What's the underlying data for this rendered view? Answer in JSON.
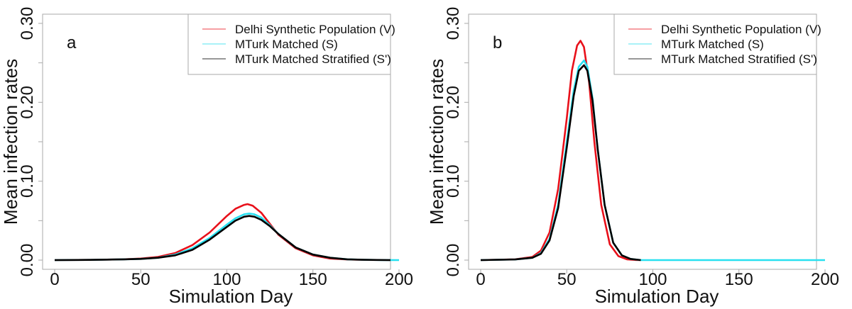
{
  "chart_data": [
    {
      "type": "line",
      "panel_label": "a",
      "title": "",
      "xlabel": "Simulation Day",
      "ylabel": "Mean infection rates",
      "xlim": [
        0,
        200
      ],
      "ylim": [
        0,
        0.3
      ],
      "x_ticks": [
        0,
        50,
        100,
        150,
        200
      ],
      "x_tick_labels": [
        "0",
        "50",
        "100",
        "150",
        "200"
      ],
      "y_ticks": [
        0,
        0.05,
        0.1,
        0.15,
        0.2,
        0.25,
        0.3
      ],
      "y_tick_labels": [
        "0.00",
        "",
        "0.10",
        "",
        "0.20",
        "",
        "0.30"
      ],
      "grid": false,
      "legend_position": "top-right",
      "series": [
        {
          "name": "Delhi Synthetic Population (V)",
          "color": "#e8101a",
          "x": [
            0,
            20,
            40,
            50,
            60,
            70,
            80,
            90,
            100,
            105,
            110,
            112,
            115,
            120,
            125,
            130,
            140,
            150,
            160,
            170,
            180,
            195
          ],
          "y": [
            0,
            0.0003,
            0.001,
            0.002,
            0.004,
            0.009,
            0.019,
            0.035,
            0.056,
            0.065,
            0.07,
            0.071,
            0.069,
            0.06,
            0.046,
            0.032,
            0.015,
            0.006,
            0.002,
            0.0008,
            0.0003,
            0
          ]
        },
        {
          "name": "MTurk Matched (S)",
          "color": "#29e0f0",
          "x": [
            0,
            20,
            40,
            50,
            60,
            70,
            80,
            90,
            100,
            105,
            110,
            113,
            116,
            120,
            125,
            130,
            140,
            150,
            160,
            170,
            180,
            190,
            200
          ],
          "y": [
            0,
            0.0003,
            0.001,
            0.0015,
            0.003,
            0.007,
            0.015,
            0.028,
            0.045,
            0.053,
            0.058,
            0.059,
            0.058,
            0.054,
            0.044,
            0.033,
            0.016,
            0.007,
            0.003,
            0.001,
            0.0004,
            0.0001,
            0
          ]
        },
        {
          "name": "MTurk Matched Stratified (S')",
          "color": "#000000",
          "x": [
            0,
            20,
            40,
            50,
            60,
            70,
            80,
            90,
            100,
            105,
            110,
            113,
            116,
            120,
            125,
            130,
            140,
            150,
            160,
            170,
            180,
            195
          ],
          "y": [
            0,
            0.0003,
            0.001,
            0.0015,
            0.003,
            0.006,
            0.013,
            0.026,
            0.042,
            0.05,
            0.055,
            0.056,
            0.055,
            0.051,
            0.043,
            0.033,
            0.016,
            0.007,
            0.003,
            0.001,
            0.0004,
            0
          ]
        }
      ]
    },
    {
      "type": "line",
      "panel_label": "b",
      "title": "",
      "xlabel": "Simulation Day",
      "ylabel": "Mean infection rates",
      "xlim": [
        0,
        200
      ],
      "ylim": [
        0,
        0.3
      ],
      "x_ticks": [
        0,
        50,
        100,
        150,
        200
      ],
      "x_tick_labels": [
        "0",
        "50",
        "100",
        "150",
        "200"
      ],
      "y_ticks": [
        0,
        0.05,
        0.1,
        0.15,
        0.2,
        0.25,
        0.3
      ],
      "y_tick_labels": [
        "0.00",
        "",
        "0.10",
        "",
        "0.20",
        "",
        "0.30"
      ],
      "grid": false,
      "legend_position": "top-right",
      "series": [
        {
          "name": "Delhi Synthetic Population (V)",
          "color": "#e8101a",
          "x": [
            0,
            20,
            30,
            35,
            40,
            45,
            50,
            53,
            56,
            58,
            60,
            63,
            66,
            70,
            75,
            80,
            85,
            90,
            93
          ],
          "y": [
            0,
            0.001,
            0.004,
            0.012,
            0.035,
            0.09,
            0.18,
            0.24,
            0.272,
            0.278,
            0.27,
            0.225,
            0.15,
            0.07,
            0.02,
            0.005,
            0.001,
            0.0002,
            0
          ]
        },
        {
          "name": "MTurk Matched (S)",
          "color": "#29e0f0",
          "x": [
            0,
            20,
            30,
            35,
            40,
            45,
            50,
            54,
            57,
            60,
            62,
            65,
            68,
            72,
            77,
            82,
            87,
            93,
            100,
            150,
            200
          ],
          "y": [
            0,
            0.0008,
            0.003,
            0.009,
            0.027,
            0.07,
            0.15,
            0.215,
            0.245,
            0.253,
            0.245,
            0.205,
            0.14,
            0.07,
            0.022,
            0.006,
            0.0015,
            0,
            0,
            0,
            0
          ]
        },
        {
          "name": "MTurk Matched Stratified (S')",
          "color": "#000000",
          "x": [
            0,
            20,
            30,
            35,
            40,
            45,
            50,
            54,
            57,
            60,
            62,
            65,
            68,
            72,
            77,
            82,
            87,
            93
          ],
          "y": [
            0,
            0.0008,
            0.003,
            0.008,
            0.025,
            0.066,
            0.143,
            0.208,
            0.24,
            0.247,
            0.24,
            0.202,
            0.14,
            0.07,
            0.022,
            0.006,
            0.0015,
            0
          ]
        }
      ]
    }
  ]
}
